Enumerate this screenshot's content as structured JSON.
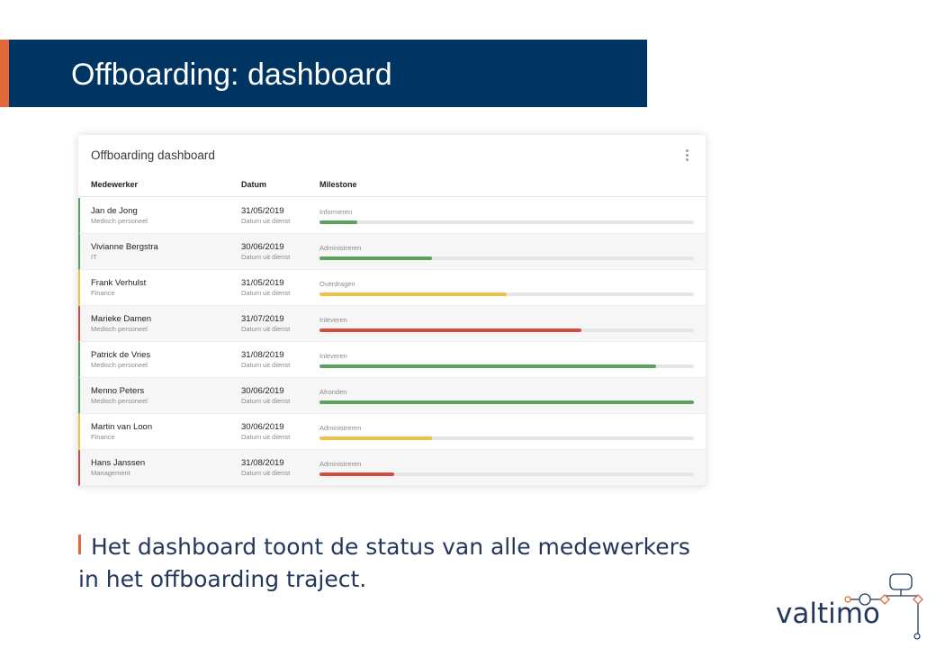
{
  "slide_title": "Offboarding: dashboard",
  "card_title": "Offboarding dashboard",
  "columns": {
    "employee": "Medewerker",
    "date": "Datum",
    "milestone": "Milestone"
  },
  "colors": {
    "green": "#5ba15b",
    "yellow": "#eec043",
    "red": "#cf4d3f",
    "navy": "#003462",
    "accent": "#e0683a"
  },
  "rows": [
    {
      "name": "Jan de Jong",
      "dept": "Medisch personeel",
      "date": "31/05/2019",
      "date_label": "Datum uit dienst",
      "milestone": "Informeren",
      "progress": 0.1,
      "status": "green"
    },
    {
      "name": "Vivianne Bergstra",
      "dept": "IT",
      "date": "30/06/2019",
      "date_label": "Datum uit dienst",
      "milestone": "Administreren",
      "progress": 0.3,
      "status": "green"
    },
    {
      "name": "Frank Verhulst",
      "dept": "Finance",
      "date": "31/05/2019",
      "date_label": "Datum uit dienst",
      "milestone": "Overdragen",
      "progress": 0.5,
      "status": "yellow"
    },
    {
      "name": "Marieke Damen",
      "dept": "Medisch personeel",
      "date": "31/07/2019",
      "date_label": "Datum uit dienst",
      "milestone": "Inleveren",
      "progress": 0.7,
      "status": "red"
    },
    {
      "name": "Patrick de Vries",
      "dept": "Medisch personeel",
      "date": "31/08/2019",
      "date_label": "Datum uit dienst",
      "milestone": "Inleveren",
      "progress": 0.9,
      "status": "green"
    },
    {
      "name": "Menno Peters",
      "dept": "Medisch personeel",
      "date": "30/06/2019",
      "date_label": "Datum uit dienst",
      "milestone": "Afronden",
      "progress": 1.0,
      "status": "green"
    },
    {
      "name": "Martin van Loon",
      "dept": "Finance",
      "date": "30/06/2019",
      "date_label": "Datum uit dienst",
      "milestone": "Administreren",
      "progress": 0.3,
      "status": "yellow"
    },
    {
      "name": "Hans Janssen",
      "dept": "Management",
      "date": "31/08/2019",
      "date_label": "Datum uit dienst",
      "milestone": "Administreren",
      "progress": 0.2,
      "status": "red"
    }
  ],
  "caption": {
    "line1": "Het dashboard toont de status van alle medewerkers",
    "line2": "in het offboarding traject."
  },
  "logo_text": "valtimo"
}
